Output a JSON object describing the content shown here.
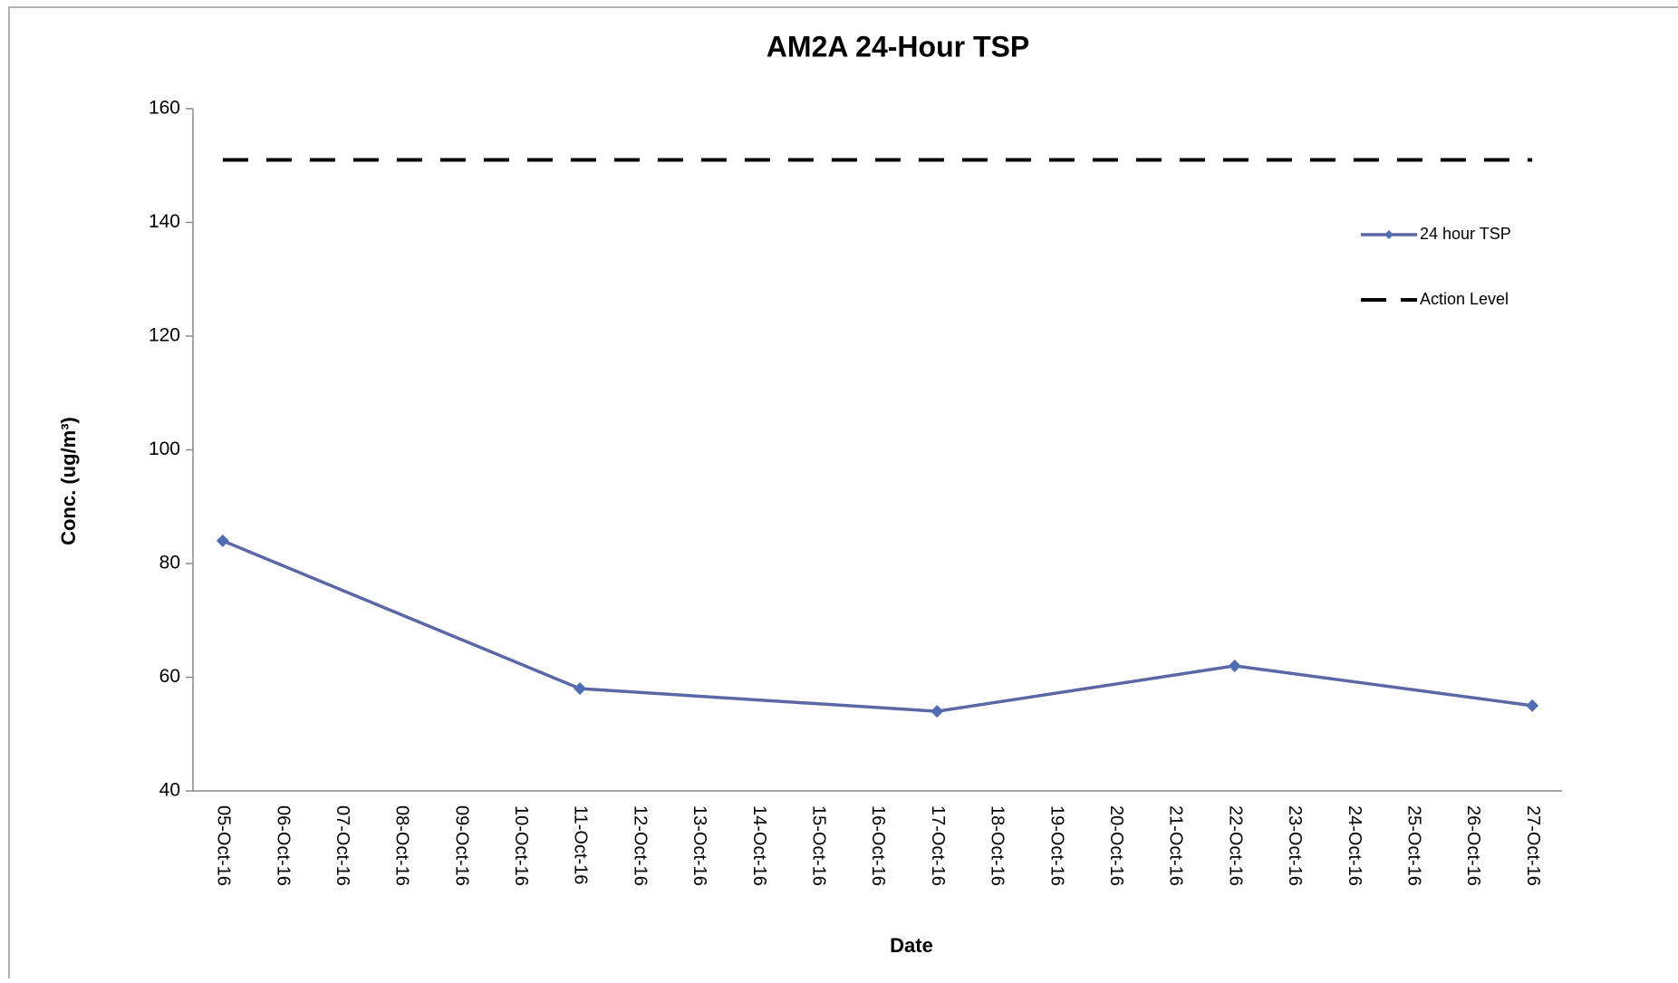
{
  "chart_data": {
    "type": "line",
    "title": "AM2A 24-Hour TSP",
    "xlabel": "Date",
    "ylabel": "Conc. (ug/m³)",
    "categories": [
      "05-Oct-16",
      "06-Oct-16",
      "07-Oct-16",
      "08-Oct-16",
      "09-Oct-16",
      "10-Oct-16",
      "11-Oct-16",
      "12-Oct-16",
      "13-Oct-16",
      "14-Oct-16",
      "15-Oct-16",
      "16-Oct-16",
      "17-Oct-16",
      "18-Oct-16",
      "19-Oct-16",
      "20-Oct-16",
      "21-Oct-16",
      "22-Oct-16",
      "23-Oct-16",
      "24-Oct-16",
      "25-Oct-16",
      "26-Oct-16",
      "27-Oct-16"
    ],
    "series": [
      {
        "name": "24 hour TSP",
        "color": "#5b67a6",
        "marker_color": "#4f6db0",
        "x": [
          "05-Oct-16",
          "11-Oct-16",
          "17-Oct-16",
          "22-Oct-16",
          "27-Oct-16"
        ],
        "values": [
          84,
          58,
          54,
          62,
          55
        ]
      },
      {
        "name": "Action Level",
        "color": "#000000",
        "dashed": true,
        "values": [
          151,
          151,
          151,
          151,
          151,
          151,
          151,
          151,
          151,
          151,
          151,
          151,
          151,
          151,
          151,
          151,
          151,
          151,
          151,
          151,
          151,
          151,
          151
        ]
      }
    ],
    "ylim": [
      40,
      160
    ],
    "yticks": [
      40,
      60,
      80,
      100,
      120,
      140,
      160
    ],
    "grid": false,
    "legend": "right"
  }
}
